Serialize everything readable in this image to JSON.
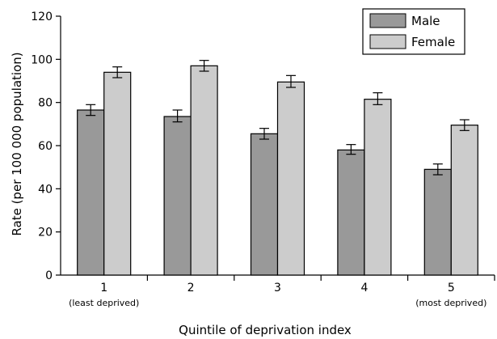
{
  "chart_data": {
    "type": "bar",
    "xlabel": "Quintile of deprivation index",
    "ylabel": "Rate (per 100 000 population)",
    "ylim": [
      0,
      120
    ],
    "yticks": [
      0,
      20,
      40,
      60,
      80,
      100,
      120
    ],
    "categories": [
      "1",
      "2",
      "3",
      "4",
      "5"
    ],
    "category_sublabels": [
      "(least deprived)",
      "",
      "",
      "",
      "(most deprived)"
    ],
    "series": [
      {
        "name": "Male",
        "color": "#999999",
        "values": [
          76.5,
          73.5,
          65.5,
          58,
          49
        ],
        "error_low": [
          74,
          71,
          63,
          56,
          46.5
        ],
        "error_high": [
          79,
          76.5,
          68,
          60.5,
          51.5
        ]
      },
      {
        "name": "Female",
        "color": "#cccccc",
        "values": [
          94,
          97,
          89.5,
          81.5,
          69.5
        ],
        "error_low": [
          91.5,
          94.5,
          87,
          79,
          67
        ],
        "error_high": [
          96.5,
          99.5,
          92.5,
          84.5,
          72
        ]
      }
    ],
    "legend_position": "top-right",
    "grid": false
  }
}
